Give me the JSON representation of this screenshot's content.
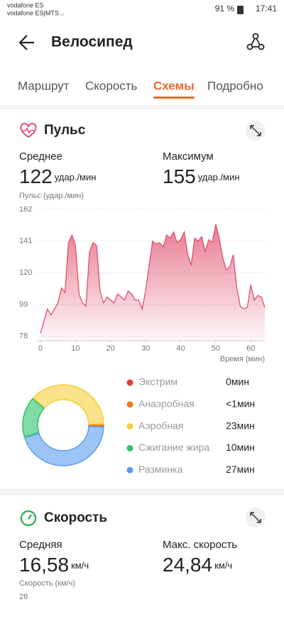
{
  "status_bar": {
    "carrier1": "vodafone ES",
    "carrier2": "vodafone ES|MTS...",
    "battery": "91 %",
    "time": "17:41"
  },
  "header": {
    "title": "Велосипед"
  },
  "tabs": {
    "items": [
      "Маршрут",
      "Скорость",
      "Схемы",
      "Подробно"
    ],
    "active": 2
  },
  "pulse": {
    "title": "Пульс",
    "average_label": "Среднее",
    "average": "122",
    "unit": "удар./мин",
    "max_label": "Максимум",
    "max": "155",
    "max_unit": "удар./мин",
    "chart_data": {
      "type": "area",
      "y_label": "Пульс (удар./мин)",
      "x_label": "Время (мин)",
      "color": "#e0506e",
      "grid": true,
      "x": [
        0,
        1,
        2,
        3,
        4,
        5,
        6,
        7,
        8,
        9,
        10,
        11,
        12,
        13,
        14,
        15,
        16,
        17,
        18,
        19,
        20,
        21,
        22,
        23,
        24,
        25,
        26,
        27,
        28,
        29,
        30,
        31,
        32,
        33,
        34,
        35,
        36,
        37,
        38,
        39,
        40,
        41,
        42,
        43,
        44,
        45,
        46,
        47,
        48,
        49,
        50,
        51,
        52,
        53,
        54,
        55,
        56,
        57,
        58,
        59,
        60,
        61,
        62,
        63,
        64
      ],
      "values": [
        80,
        88,
        96,
        92,
        96,
        100,
        110,
        107,
        140,
        145,
        138,
        106,
        100,
        98,
        134,
        140,
        138,
        108,
        100,
        104,
        102,
        100,
        106,
        104,
        102,
        108,
        106,
        102,
        102,
        96,
        108,
        125,
        141,
        139,
        140,
        137,
        145,
        143,
        147,
        140,
        142,
        147,
        132,
        125,
        143,
        141,
        144,
        134,
        142,
        140,
        152,
        143,
        130,
        122,
        124,
        132,
        110,
        98,
        96,
        97,
        112,
        102,
        105,
        104,
        97
      ],
      "xlim": [
        -1,
        64
      ],
      "ylim": [
        75,
        162
      ],
      "yticks": [
        78,
        99,
        120,
        141,
        162
      ],
      "xticks": [
        0,
        10,
        20,
        30,
        40,
        50,
        60
      ]
    }
  },
  "zones": {
    "type": "donut",
    "names": [
      "Экстрим",
      "Анаэробная",
      "Аэробная",
      "Сжигание жира",
      "Разминка"
    ],
    "colors": [
      "#e8392c",
      "#ee7b22",
      "#f5cf3a",
      "#2fc267",
      "#5b9cf0"
    ],
    "values": [
      0,
      0.5,
      23,
      10,
      27
    ],
    "value_labels": [
      "0мин",
      "<1мин",
      "23мин",
      "10мин",
      "27мин"
    ]
  },
  "speed": {
    "title": "Скорость",
    "average_label": "Средняя",
    "average": "16,58",
    "unit": "км/ч",
    "max_label": "Макс. скорость",
    "max": "24,84",
    "max_unit": "км/ч",
    "y_label": "Скорость (км/ч)",
    "top_tick": "28"
  }
}
